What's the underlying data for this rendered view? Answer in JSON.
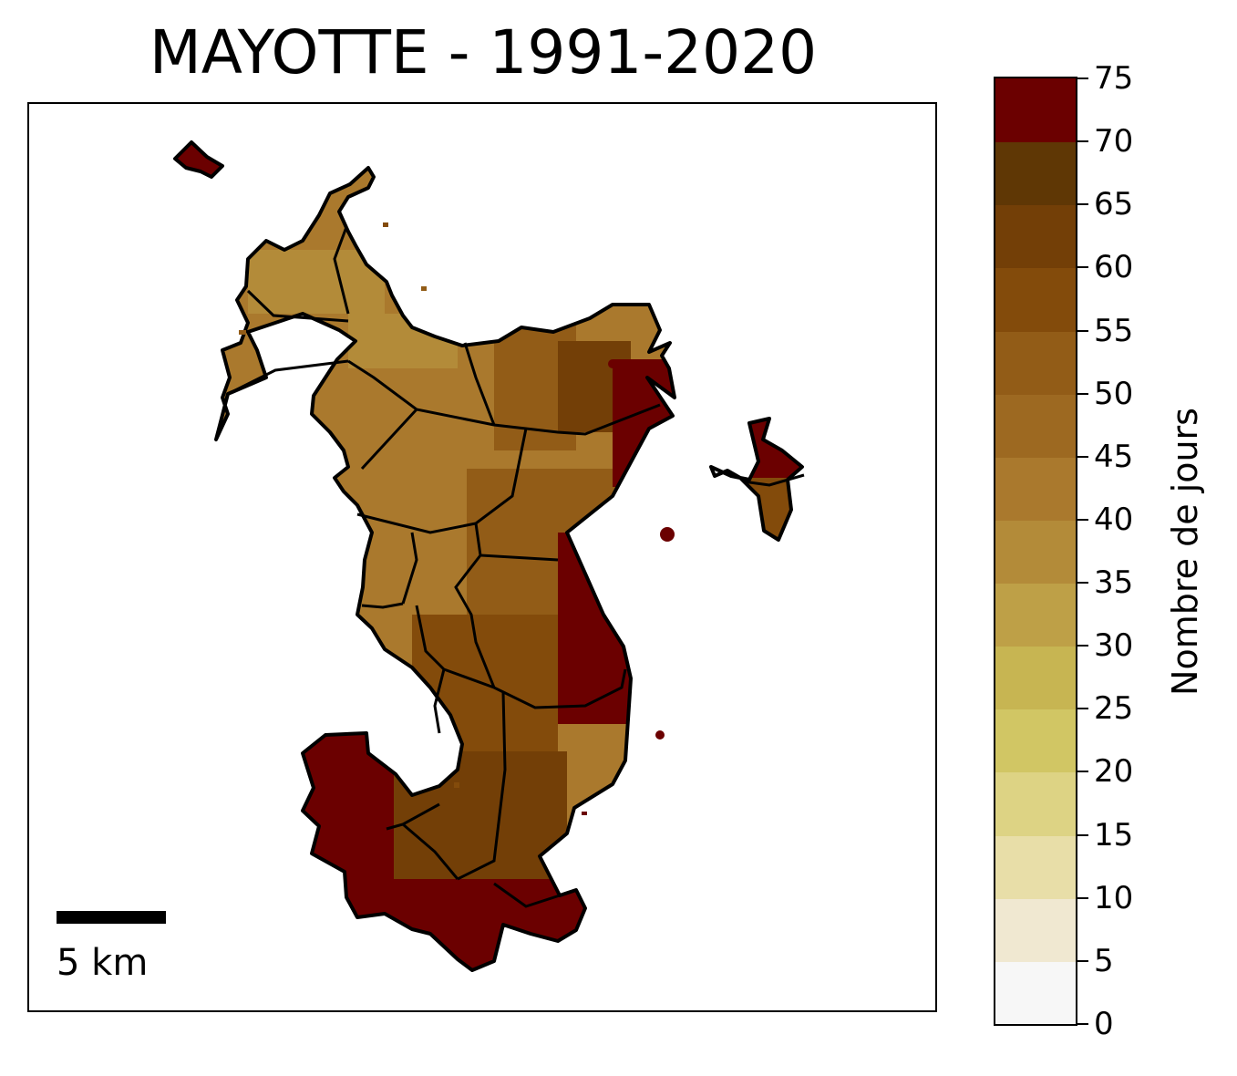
{
  "title": "MAYOTTE - 1991-2020",
  "scale": {
    "label": "5 km",
    "km": 5
  },
  "colorbar": {
    "label": "Nombre de jours",
    "min": 0,
    "max": 75,
    "ticks": [
      "0",
      "5",
      "10",
      "15",
      "20",
      "25",
      "30",
      "35",
      "40",
      "45",
      "50",
      "55",
      "60",
      "65",
      "70",
      "75"
    ],
    "colors": [
      "#f7f7f7",
      "#f0e8d1",
      "#e8dea8",
      "#ddd384",
      "#d1c664",
      "#c7b552",
      "#bea047",
      "#b38b39",
      "#aa792d",
      "#9d6921",
      "#925c17",
      "#834b0b",
      "#733f07",
      "#5f3705",
      "#6b0000"
    ]
  },
  "map": {
    "palette": {
      "light": "#b38b39",
      "mid": "#aa792d",
      "dark": "#925c17",
      "darker": "#834b0b",
      "deep": "#733f07",
      "max": "#6b0000"
    },
    "region_classes": [
      {
        "zone": "north",
        "range": "40-50",
        "color_key": "mid"
      },
      {
        "zone": "centre-west",
        "range": "35-45",
        "color_key": "light"
      },
      {
        "zone": "centre",
        "range": "45-55",
        "color_key": "dark"
      },
      {
        "zone": "east-coast",
        "range": "70-75",
        "color_key": "max"
      },
      {
        "zone": "south",
        "range": "55-65",
        "color_key": "deep"
      },
      {
        "zone": "south-coast",
        "range": "70-75",
        "color_key": "max"
      },
      {
        "zone": "petite-terre",
        "range": "70-75",
        "color_key": "max"
      }
    ]
  }
}
